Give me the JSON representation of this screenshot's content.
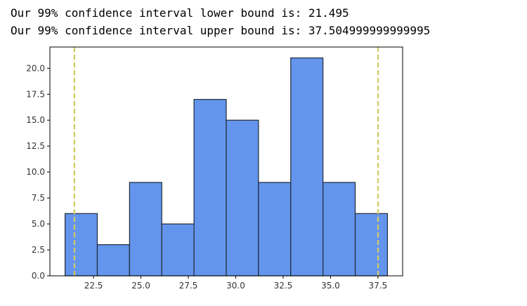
{
  "output": {
    "lines": [
      "Our 99% confidence interval lower bound is: 21.495",
      "Our 99% confidence interval upper bound is: 37.504999999999995"
    ]
  },
  "colors": {
    "bar_fill": "#6495ED",
    "bar_edge": "#1f2a36",
    "ci_line": "#d4c95e",
    "axis": "#000000"
  },
  "chart_data": {
    "type": "bar",
    "subtype": "histogram",
    "bins": [
      {
        "x0": 21.0,
        "x1": 22.7,
        "count": 6
      },
      {
        "x0": 22.7,
        "x1": 24.4,
        "count": 3
      },
      {
        "x0": 24.4,
        "x1": 26.1,
        "count": 9
      },
      {
        "x0": 26.1,
        "x1": 27.8,
        "count": 5
      },
      {
        "x0": 27.8,
        "x1": 29.5,
        "count": 17
      },
      {
        "x0": 29.5,
        "x1": 31.2,
        "count": 15
      },
      {
        "x0": 31.2,
        "x1": 32.9,
        "count": 9
      },
      {
        "x0": 32.9,
        "x1": 34.6,
        "count": 21
      },
      {
        "x0": 34.6,
        "x1": 36.3,
        "count": 9
      },
      {
        "x0": 36.3,
        "x1": 38.0,
        "count": 6
      }
    ],
    "vlines": [
      {
        "x": 21.495,
        "style": "dashed"
      },
      {
        "x": 37.504999999999995,
        "style": "dashed"
      }
    ],
    "xlim": [
      20.2,
      38.8
    ],
    "ylim": [
      0,
      22.05
    ],
    "xticks": [
      22.5,
      25.0,
      27.5,
      30.0,
      32.5,
      35.0,
      37.5
    ],
    "xtick_labels": [
      "22.5",
      "25.0",
      "27.5",
      "30.0",
      "32.5",
      "35.0",
      "37.5"
    ],
    "yticks": [
      0,
      2.5,
      5,
      7.5,
      10,
      12.5,
      15,
      17.5,
      20
    ],
    "ytick_labels": [
      "0.0",
      "2.5",
      "5.0",
      "7.5",
      "10.0",
      "12.5",
      "15.0",
      "17.5",
      "20.0"
    ],
    "title": "",
    "xlabel": "",
    "ylabel": "",
    "grid": false
  }
}
